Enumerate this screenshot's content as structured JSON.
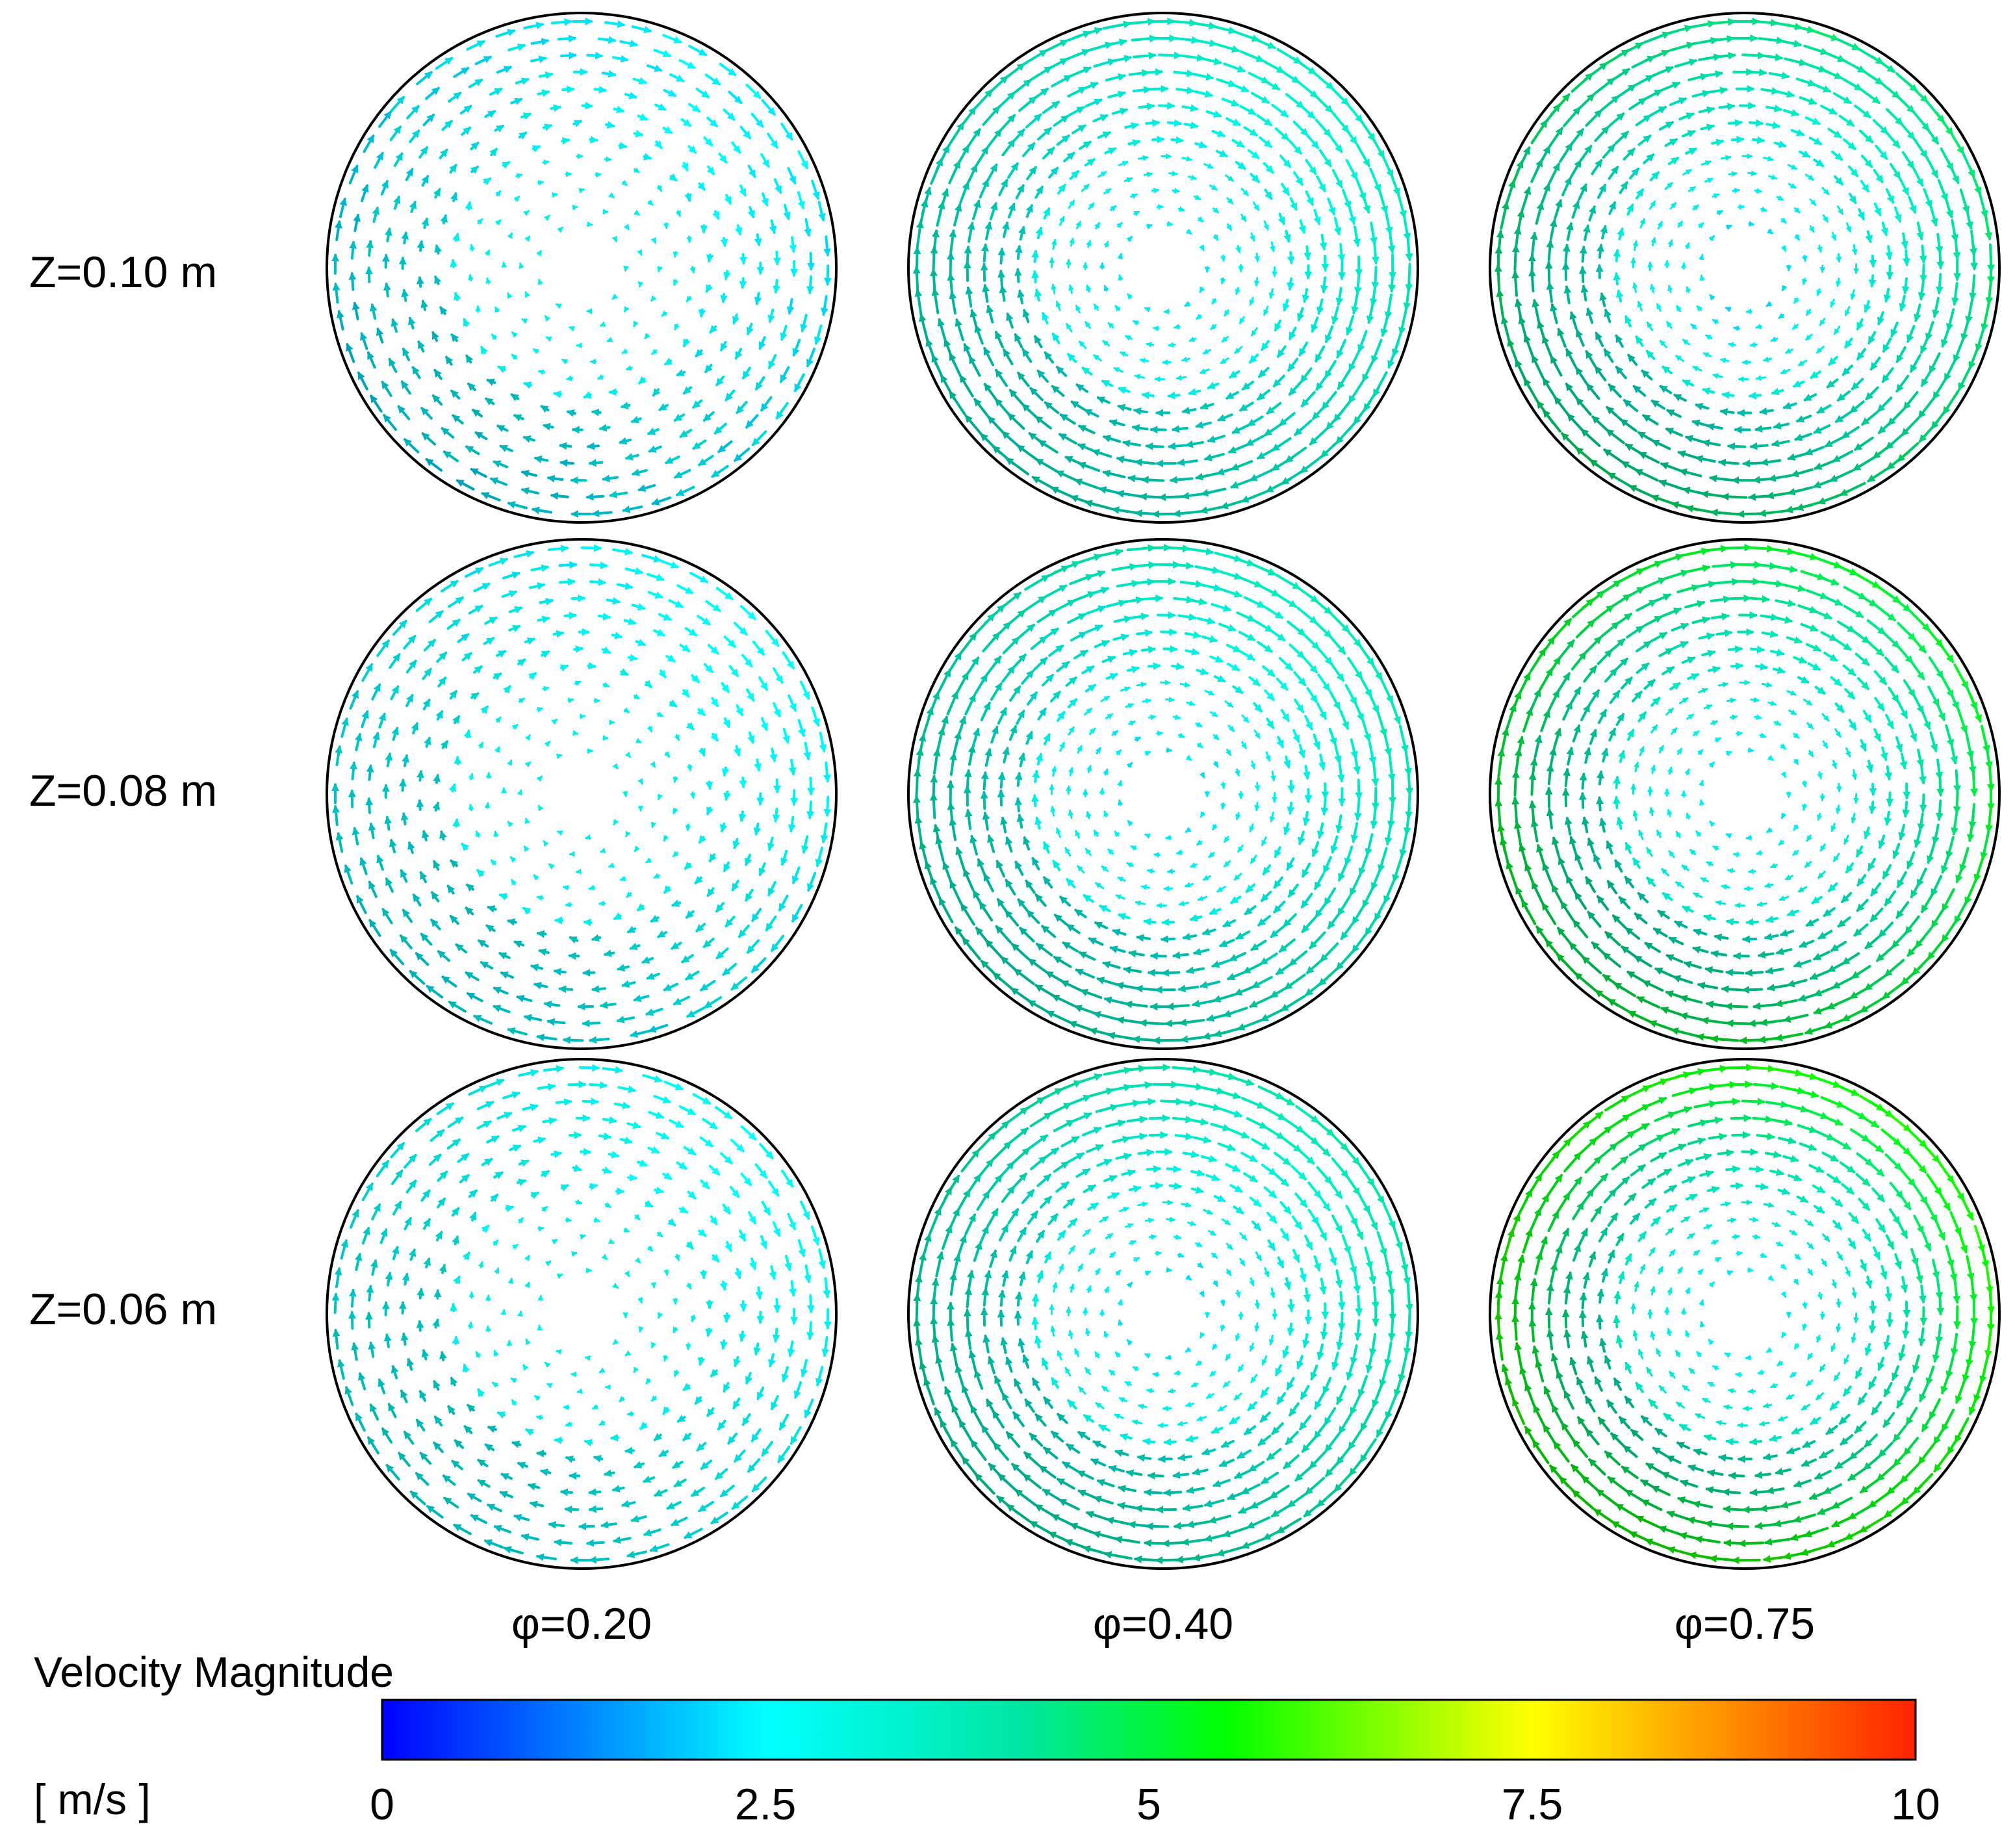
{
  "chart_data": {
    "type": "vector-field",
    "title": "",
    "rows": [
      "Z=0.10 m",
      "Z=0.08 m",
      "Z=0.06 m"
    ],
    "columns": [
      "φ=0.20",
      "φ=0.40",
      "φ=0.75"
    ],
    "panels": [
      {
        "row": "Z=0.10 m",
        "column": "φ=0.20",
        "edge_velocity": 2.3,
        "inner_velocity": 2.7,
        "rotation": "clockwise"
      },
      {
        "row": "Z=0.10 m",
        "column": "φ=0.40",
        "edge_velocity": 3.6,
        "inner_velocity": 2.4,
        "rotation": "clockwise"
      },
      {
        "row": "Z=0.10 m",
        "column": "φ=0.75",
        "edge_velocity": 4.6,
        "inner_velocity": 2.2,
        "rotation": "clockwise"
      },
      {
        "row": "Z=0.08 m",
        "column": "φ=0.20",
        "edge_velocity": 2.5,
        "inner_velocity": 2.7,
        "rotation": "clockwise"
      },
      {
        "row": "Z=0.08 m",
        "column": "φ=0.40",
        "edge_velocity": 3.8,
        "inner_velocity": 2.3,
        "rotation": "clockwise"
      },
      {
        "row": "Z=0.08 m",
        "column": "φ=0.75",
        "edge_velocity": 5.2,
        "inner_velocity": 2.3,
        "rotation": "clockwise"
      },
      {
        "row": "Z=0.06 m",
        "column": "φ=0.20",
        "edge_velocity": 2.6,
        "inner_velocity": 2.7,
        "rotation": "clockwise"
      },
      {
        "row": "Z=0.06 m",
        "column": "φ=0.40",
        "edge_velocity": 4.0,
        "inner_velocity": 2.3,
        "rotation": "clockwise"
      },
      {
        "row": "Z=0.06 m",
        "column": "φ=0.75",
        "edge_velocity": 5.8,
        "inner_velocity": 2.3,
        "rotation": "clockwise"
      }
    ],
    "colorbar": {
      "title": "Velocity Magnitude",
      "unit": "[ m/s ]",
      "min": 0,
      "max": 10,
      "ticks": [
        "0",
        "2.5",
        "5",
        "7.5",
        "10"
      ],
      "tick_values": [
        0,
        2.5,
        5,
        7.5,
        10
      ],
      "stops": [
        {
          "value": 0,
          "color": "#0000ff"
        },
        {
          "value": 2.5,
          "color": "#00ffff"
        },
        {
          "value": 4.2,
          "color": "#00e6a0"
        },
        {
          "value": 5.5,
          "color": "#00ff00"
        },
        {
          "value": 7.5,
          "color": "#ffff00"
        },
        {
          "value": 10,
          "color": "#ff2200"
        }
      ]
    }
  }
}
